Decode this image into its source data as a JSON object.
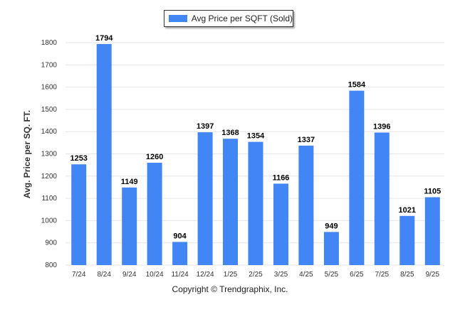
{
  "chart_data": {
    "type": "bar",
    "legend": "top-center",
    "grid": true,
    "ylabel": "Avg. Price per SQ. FT.",
    "xlabel": "",
    "ylim": [
      800,
      1800
    ],
    "yticks": [
      800,
      900,
      1000,
      1100,
      1200,
      1300,
      1400,
      1500,
      1600,
      1700,
      1800
    ],
    "categories": [
      "7/24",
      "8/24",
      "9/24",
      "10/24",
      "11/24",
      "12/24",
      "1/25",
      "2/25",
      "3/25",
      "4/25",
      "5/25",
      "6/25",
      "7/25",
      "8/25",
      "9/25"
    ],
    "series": [
      {
        "name": "Avg Price per SQFT (Sold)",
        "color": "#4285f4",
        "values": [
          1253,
          1794,
          1149,
          1260,
          904,
          1397,
          1368,
          1354,
          1166,
          1337,
          949,
          1584,
          1396,
          1021,
          1105
        ]
      }
    ]
  },
  "footer": {
    "copyright": "Copyright © Trendgraphix, Inc."
  },
  "colors": {
    "bar": "#4285f4",
    "grid": "#e6e6e6",
    "axis_text": "#333333",
    "value_label": "#000000"
  }
}
